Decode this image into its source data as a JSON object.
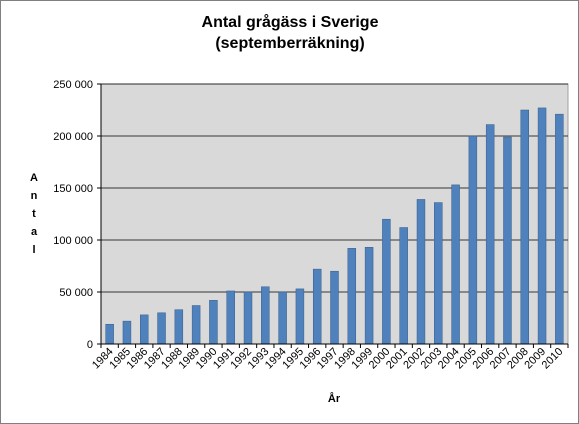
{
  "chart_data": {
    "type": "bar",
    "title": [
      "Antal grågäss i Sverige",
      "(septemberräkning)"
    ],
    "xlabel": "År",
    "ylabel": "Antal",
    "ylim": [
      0,
      250000
    ],
    "yticks": [
      0,
      50000,
      100000,
      150000,
      200000,
      250000
    ],
    "ytick_labels": [
      "0",
      "50 000",
      "100 000",
      "150 000",
      "200 000",
      "250 000"
    ],
    "grid": true,
    "categories": [
      "1984",
      "1985",
      "1986",
      "1987",
      "1988",
      "1989",
      "1990",
      "1991",
      "1992",
      "1993",
      "1994",
      "1995",
      "1996",
      "1997",
      "1998",
      "1999",
      "2000",
      "2001",
      "2002",
      "2003",
      "2004",
      "2005",
      "2006",
      "2007",
      "2008",
      "2009",
      "2010"
    ],
    "values": [
      19000,
      22000,
      28000,
      30000,
      33000,
      37000,
      42000,
      51000,
      50000,
      55000,
      50000,
      53000,
      72000,
      70000,
      92000,
      93000,
      120000,
      112000,
      139000,
      136000,
      153000,
      200000,
      211000,
      199000,
      225000,
      227000,
      221000
    ],
    "colors": {
      "bar": "#4f81bd",
      "bar_edge": "#385d8a",
      "plot_bg": "#d9d9d9",
      "grid": "#000000"
    }
  }
}
